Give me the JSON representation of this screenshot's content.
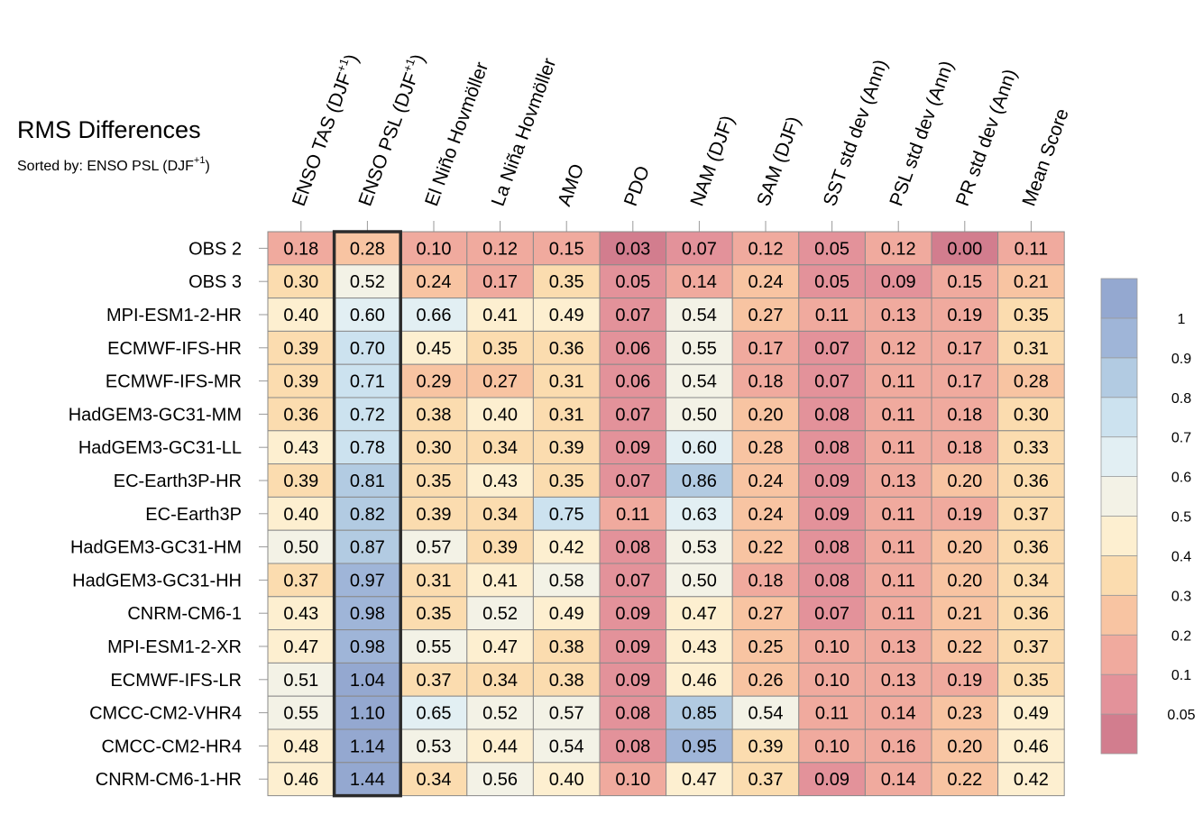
{
  "chart_data": {
    "type": "heatmap",
    "title": "RMS Differences",
    "subtitle": "Sorted by: ENSO PSL (DJF",
    "subtitle_sup": "+1",
    "subtitle_end": ")",
    "columns": [
      {
        "label": "ENSO TAS (DJF",
        "sup": "+1",
        "end": ")"
      },
      {
        "label": "ENSO PSL (DJF",
        "sup": "+1",
        "end": ")"
      },
      {
        "label": "El Niño Hovmöller"
      },
      {
        "label": "La Niña Hovmöller"
      },
      {
        "label": "AMO"
      },
      {
        "label": "PDO"
      },
      {
        "label": "NAM (DJF)"
      },
      {
        "label": "SAM (DJF)"
      },
      {
        "label": "SST std dev (Ann)"
      },
      {
        "label": "PSL std dev (Ann)"
      },
      {
        "label": "PR std dev (Ann)"
      },
      {
        "label": "Mean Score"
      }
    ],
    "rows": [
      "OBS 2",
      "OBS 3",
      "MPI-ESM1-2-HR",
      "ECMWF-IFS-HR",
      "ECMWF-IFS-MR",
      "HadGEM3-GC31-MM",
      "HadGEM3-GC31-LL",
      "EC-Earth3P-HR",
      "EC-Earth3P",
      "HadGEM3-GC31-HM",
      "HadGEM3-GC31-HH",
      "CNRM-CM6-1",
      "MPI-ESM1-2-XR",
      "ECMWF-IFS-LR",
      "CMCC-CM2-VHR4",
      "CMCC-CM2-HR4",
      "CNRM-CM6-1-HR"
    ],
    "values": [
      [
        "0.18",
        "0.28",
        "0.10",
        "0.12",
        "0.15",
        "0.03",
        "0.07",
        "0.12",
        "0.05",
        "0.12",
        "0.00",
        "0.11"
      ],
      [
        "0.30",
        "0.52",
        "0.24",
        "0.17",
        "0.35",
        "0.05",
        "0.14",
        "0.24",
        "0.05",
        "0.09",
        "0.15",
        "0.21"
      ],
      [
        "0.40",
        "0.60",
        "0.66",
        "0.41",
        "0.49",
        "0.07",
        "0.54",
        "0.27",
        "0.11",
        "0.13",
        "0.19",
        "0.35"
      ],
      [
        "0.39",
        "0.70",
        "0.45",
        "0.35",
        "0.36",
        "0.06",
        "0.55",
        "0.17",
        "0.07",
        "0.12",
        "0.17",
        "0.31"
      ],
      [
        "0.39",
        "0.71",
        "0.29",
        "0.27",
        "0.31",
        "0.06",
        "0.54",
        "0.18",
        "0.07",
        "0.11",
        "0.17",
        "0.28"
      ],
      [
        "0.36",
        "0.72",
        "0.38",
        "0.40",
        "0.31",
        "0.07",
        "0.50",
        "0.20",
        "0.08",
        "0.11",
        "0.18",
        "0.30"
      ],
      [
        "0.43",
        "0.78",
        "0.30",
        "0.34",
        "0.39",
        "0.09",
        "0.60",
        "0.28",
        "0.08",
        "0.11",
        "0.18",
        "0.33"
      ],
      [
        "0.39",
        "0.81",
        "0.35",
        "0.43",
        "0.35",
        "0.07",
        "0.86",
        "0.24",
        "0.09",
        "0.13",
        "0.20",
        "0.36"
      ],
      [
        "0.40",
        "0.82",
        "0.39",
        "0.34",
        "0.75",
        "0.11",
        "0.63",
        "0.24",
        "0.09",
        "0.11",
        "0.19",
        "0.37"
      ],
      [
        "0.50",
        "0.87",
        "0.57",
        "0.39",
        "0.42",
        "0.08",
        "0.53",
        "0.22",
        "0.08",
        "0.11",
        "0.20",
        "0.36"
      ],
      [
        "0.37",
        "0.97",
        "0.31",
        "0.41",
        "0.58",
        "0.07",
        "0.50",
        "0.18",
        "0.08",
        "0.11",
        "0.20",
        "0.34"
      ],
      [
        "0.43",
        "0.98",
        "0.35",
        "0.52",
        "0.49",
        "0.09",
        "0.47",
        "0.27",
        "0.07",
        "0.11",
        "0.21",
        "0.36"
      ],
      [
        "0.47",
        "0.98",
        "0.55",
        "0.47",
        "0.38",
        "0.09",
        "0.43",
        "0.25",
        "0.10",
        "0.13",
        "0.22",
        "0.37"
      ],
      [
        "0.51",
        "1.04",
        "0.37",
        "0.34",
        "0.38",
        "0.09",
        "0.46",
        "0.26",
        "0.10",
        "0.13",
        "0.19",
        "0.35"
      ],
      [
        "0.55",
        "1.10",
        "0.65",
        "0.52",
        "0.57",
        "0.08",
        "0.85",
        "0.54",
        "0.11",
        "0.14",
        "0.23",
        "0.49"
      ],
      [
        "0.48",
        "1.14",
        "0.53",
        "0.44",
        "0.54",
        "0.08",
        "0.95",
        "0.39",
        "0.10",
        "0.16",
        "0.20",
        "0.46"
      ],
      [
        "0.46",
        "1.44",
        "0.34",
        "0.56",
        "0.40",
        "0.10",
        "0.47",
        "0.37",
        "0.09",
        "0.14",
        "0.22",
        "0.42"
      ]
    ],
    "highlight_column": 1,
    "colorbar": {
      "bounds": [
        0.05,
        0.1,
        0.2,
        0.3,
        0.4,
        0.5,
        0.6,
        0.7,
        0.8,
        0.9,
        1
      ],
      "tick_labels": [
        "0.05",
        "0.1",
        "0.2",
        "0.3",
        "0.4",
        "0.5",
        "0.6",
        "0.7",
        "0.8",
        "0.9",
        "1"
      ],
      "colors": [
        "#d27d8e",
        "#e3929a",
        "#f0aa9e",
        "#f8c4a2",
        "#fbdcaf",
        "#fdefd0",
        "#f3f2e6",
        "#e2eff3",
        "#cce2ef",
        "#b2cbe2",
        "#9fb5d8",
        "#94a8d0"
      ]
    }
  }
}
